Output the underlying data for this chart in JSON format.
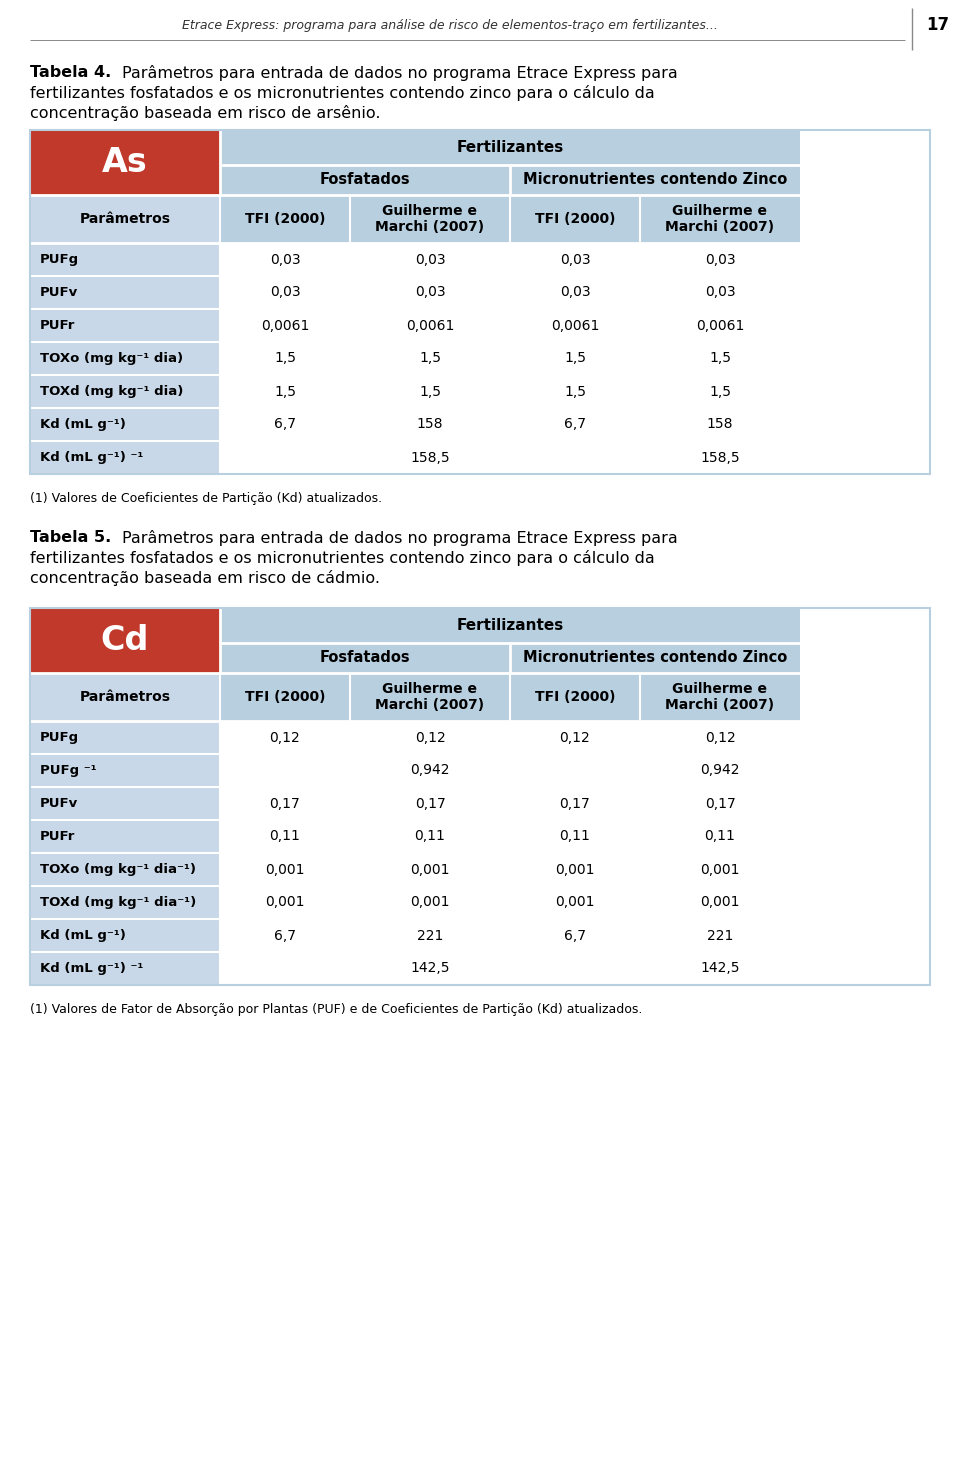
{
  "page_header": "Etrace Express: programa para análise de risco de elementos-traço em fertilizantes...",
  "page_number": "17",
  "table4_footnote": "⁻¹ Valores de Coeficientes de Partição (Kd) atualizados.",
  "table5_footnote": "⁻¹ Valores de Fator de Absorção por Plantas (PUF) e de Coeficientes de Partição (Kd) atualizados.",
  "element_color": "#c0392b",
  "header_bg": "#b8cfe0",
  "param_col_bg": "#c8d8e8",
  "data_bg": "#ffffff",
  "table4": {
    "element": "As",
    "rows": [
      [
        "PUFg",
        "0,03",
        "0,03",
        "0,03",
        "0,03"
      ],
      [
        "PUFv",
        "0,03",
        "0,03",
        "0,03",
        "0,03"
      ],
      [
        "PUFr",
        "0,0061",
        "0,0061",
        "0,0061",
        "0,0061"
      ],
      [
        "TOXo (mg kg⁻¹ dia)",
        "1,5",
        "1,5",
        "1,5",
        "1,5"
      ],
      [
        "TOXd (mg kg⁻¹ dia)",
        "1,5",
        "1,5",
        "1,5",
        "1,5"
      ],
      [
        "Kd (mL g⁻¹)",
        "6,7",
        "158",
        "6,7",
        "158"
      ],
      [
        "Kd (mL g⁻¹) ⁻¹",
        "",
        "158,5",
        "",
        "158,5"
      ]
    ]
  },
  "table5": {
    "element": "Cd",
    "rows": [
      [
        "PUFg",
        "0,12",
        "0,12",
        "0,12",
        "0,12"
      ],
      [
        "PUFg ⁻¹",
        "",
        "0,942",
        "",
        "0,942"
      ],
      [
        "PUFv",
        "0,17",
        "0,17",
        "0,17",
        "0,17"
      ],
      [
        "PUFr",
        "0,11",
        "0,11",
        "0,11",
        "0,11"
      ],
      [
        "TOXo (mg kg⁻¹ dia⁻¹)",
        "0,001",
        "0,001",
        "0,001",
        "0,001"
      ],
      [
        "TOXd (mg kg⁻¹ dia⁻¹)",
        "0,001",
        "0,001",
        "0,001",
        "0,001"
      ],
      [
        "Kd (mL g⁻¹)",
        "6,7",
        "221",
        "6,7",
        "221"
      ],
      [
        "Kd (mL g⁻¹) ⁻¹",
        "",
        "142,5",
        "",
        "142,5"
      ]
    ]
  }
}
